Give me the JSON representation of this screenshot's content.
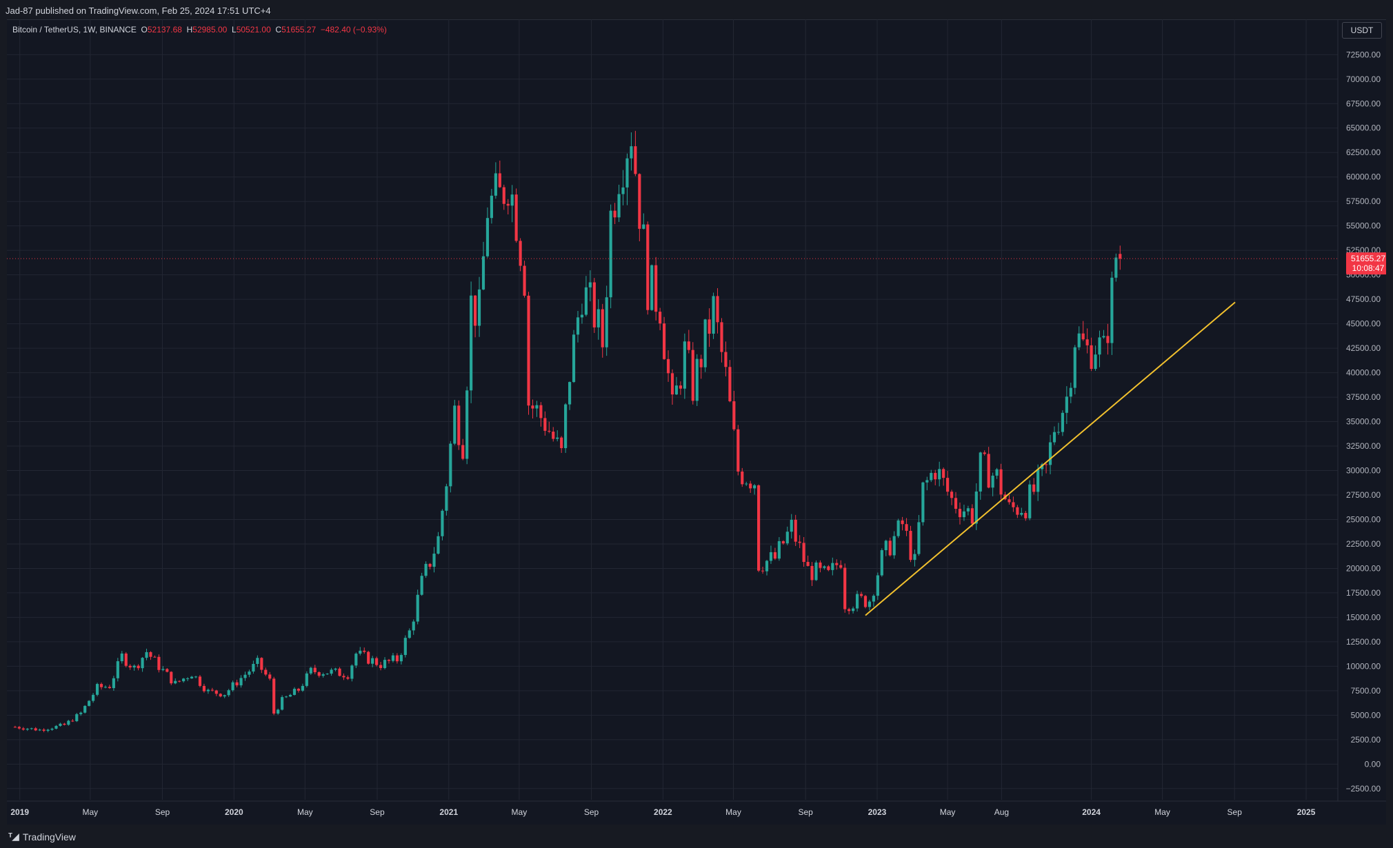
{
  "header": {
    "publisher_line": "Jad-87 published on TradingView.com, Feb 25, 2024 17:51 UTC+4"
  },
  "legend": {
    "symbol": "Bitcoin / TetherUS, 1W, BINANCE",
    "o_label": "O",
    "o_value": "52137.68",
    "h_label": "H",
    "h_value": "52985.00",
    "l_label": "L",
    "l_value": "50521.00",
    "c_label": "C",
    "c_value": "51655.27",
    "change": "−482.40 (−0.93%)"
  },
  "currency_button": "USDT",
  "footer": {
    "brand": "TradingView",
    "logo_icon": "tradingview-logo-icon"
  },
  "colors": {
    "up": "#26a69a",
    "down": "#f23645",
    "trendline": "#f2c12e",
    "grid": "#232733",
    "axis_text": "#b2b5be",
    "background": "#131722"
  },
  "chart_data": {
    "type": "candlestick",
    "interval": "1W",
    "ylim": [
      -3500,
      74000
    ],
    "xlim": [
      "2018-12-10",
      "2025-02-24"
    ],
    "yticks": [
      -2500,
      0,
      2500,
      5000,
      7500,
      10000,
      12500,
      15000,
      17500,
      20000,
      22500,
      25000,
      27500,
      30000,
      32500,
      35000,
      37500,
      40000,
      42500,
      45000,
      47500,
      50000,
      52500,
      55000,
      57500,
      60000,
      62500,
      65000,
      67500,
      70000,
      72500
    ],
    "ytick_labels": [
      "−2500.00",
      "0.00",
      "2500.00",
      "5000.00",
      "7500.00",
      "10000.00",
      "12500.00",
      "15000.00",
      "17500.00",
      "20000.00",
      "22500.00",
      "25000.00",
      "27500.00",
      "30000.00",
      "32500.00",
      "35000.00",
      "37500.00",
      "40000.00",
      "42500.00",
      "45000.00",
      "47500.00",
      "50000.00",
      "52500.00",
      "55000.00",
      "57500.00",
      "60000.00",
      "62500.00",
      "65000.00",
      "67500.00",
      "70000.00",
      "72500.00"
    ],
    "xticks": [
      {
        "date": "2019-01-01",
        "label": "2019",
        "bold": true
      },
      {
        "date": "2019-05-01",
        "label": "May",
        "bold": false
      },
      {
        "date": "2019-09-01",
        "label": "Sep",
        "bold": false
      },
      {
        "date": "2020-01-01",
        "label": "2020",
        "bold": true
      },
      {
        "date": "2020-05-01",
        "label": "May",
        "bold": false
      },
      {
        "date": "2020-09-01",
        "label": "Sep",
        "bold": false
      },
      {
        "date": "2021-01-01",
        "label": "2021",
        "bold": true
      },
      {
        "date": "2021-05-01",
        "label": "May",
        "bold": false
      },
      {
        "date": "2021-09-01",
        "label": "Sep",
        "bold": false
      },
      {
        "date": "2022-01-01",
        "label": "2022",
        "bold": true
      },
      {
        "date": "2022-05-01",
        "label": "May",
        "bold": false
      },
      {
        "date": "2022-09-01",
        "label": "Sep",
        "bold": false
      },
      {
        "date": "2023-01-01",
        "label": "2023",
        "bold": true
      },
      {
        "date": "2023-05-01",
        "label": "May",
        "bold": false
      },
      {
        "date": "2023-08-01",
        "label": "Aug",
        "bold": false
      },
      {
        "date": "2024-01-01",
        "label": "2024",
        "bold": true
      },
      {
        "date": "2024-05-01",
        "label": "May",
        "bold": false
      },
      {
        "date": "2024-09-01",
        "label": "Sep",
        "bold": false
      },
      {
        "date": "2025-01-01",
        "label": "2025",
        "bold": true
      }
    ],
    "last_price": 51655.27,
    "last_price_label": "51655.27",
    "countdown_label": "10:08:47",
    "price_anchors": [
      [
        "2018-12-24",
        3800
      ],
      [
        "2019-02-04",
        3500
      ],
      [
        "2019-03-18",
        4000
      ],
      [
        "2019-04-15",
        5200
      ],
      [
        "2019-05-13",
        7800
      ],
      [
        "2019-06-03",
        8000
      ],
      [
        "2019-06-24",
        11000
      ],
      [
        "2019-07-15",
        9800
      ],
      [
        "2019-08-05",
        11500
      ],
      [
        "2019-08-26",
        10000
      ],
      [
        "2019-09-23",
        8200
      ],
      [
        "2019-10-21",
        9300
      ],
      [
        "2019-11-18",
        7400
      ],
      [
        "2019-12-16",
        7200
      ],
      [
        "2020-01-13",
        8800
      ],
      [
        "2020-02-10",
        10300
      ],
      [
        "2020-03-02",
        8500
      ],
      [
        "2020-03-09",
        5200
      ],
      [
        "2020-03-23",
        6500
      ],
      [
        "2020-04-20",
        7600
      ],
      [
        "2020-05-11",
        9500
      ],
      [
        "2020-06-15",
        9400
      ],
      [
        "2020-07-13",
        9200
      ],
      [
        "2020-07-27",
        11300
      ],
      [
        "2020-09-07",
        10200
      ],
      [
        "2020-10-05",
        10700
      ],
      [
        "2020-10-26",
        13500
      ],
      [
        "2020-11-16",
        18500
      ],
      [
        "2020-12-14",
        23000
      ],
      [
        "2020-12-28",
        29000
      ],
      [
        "2021-01-11",
        36000
      ],
      [
        "2021-01-25",
        33000
      ],
      [
        "2021-02-08",
        47000
      ],
      [
        "2021-02-22",
        46000
      ],
      [
        "2021-03-08",
        57000
      ],
      [
        "2021-03-29",
        57800
      ],
      [
        "2021-04-12",
        60000
      ],
      [
        "2021-04-26",
        56000
      ],
      [
        "2021-05-10",
        50000
      ],
      [
        "2021-05-17",
        37000
      ],
      [
        "2021-06-14",
        35000
      ],
      [
        "2021-07-12",
        31500
      ],
      [
        "2021-07-26",
        40000
      ],
      [
        "2021-08-16",
        48500
      ],
      [
        "2021-09-06",
        46000
      ],
      [
        "2021-09-20",
        43000
      ],
      [
        "2021-10-04",
        56000
      ],
      [
        "2021-10-18",
        61000
      ],
      [
        "2021-11-08",
        65000
      ],
      [
        "2021-11-22",
        57000
      ],
      [
        "2021-12-06",
        49000
      ],
      [
        "2021-12-27",
        47000
      ],
      [
        "2022-01-17",
        36000
      ],
      [
        "2022-02-07",
        42000
      ],
      [
        "2022-02-21",
        38500
      ],
      [
        "2022-03-28",
        46500
      ],
      [
        "2022-04-18",
        39500
      ],
      [
        "2022-05-09",
        30000
      ],
      [
        "2022-06-06",
        29000
      ],
      [
        "2022-06-13",
        20500
      ],
      [
        "2022-07-11",
        21000
      ],
      [
        "2022-08-08",
        24200
      ],
      [
        "2022-09-05",
        19800
      ],
      [
        "2022-10-10",
        19200
      ],
      [
        "2022-10-31",
        21000
      ],
      [
        "2022-11-07",
        16500
      ],
      [
        "2022-12-19",
        16800
      ],
      [
        "2023-01-09",
        21000
      ],
      [
        "2023-02-13",
        24500
      ],
      [
        "2023-03-06",
        20500
      ],
      [
        "2023-03-20",
        28000
      ],
      [
        "2023-04-10",
        30300
      ],
      [
        "2023-05-08",
        27000
      ],
      [
        "2023-06-12",
        25500
      ],
      [
        "2023-06-26",
        30400
      ],
      [
        "2023-07-24",
        29300
      ],
      [
        "2023-08-14",
        26000
      ],
      [
        "2023-09-11",
        26500
      ],
      [
        "2023-10-16",
        30000
      ],
      [
        "2023-10-30",
        34500
      ],
      [
        "2023-11-20",
        37500
      ],
      [
        "2023-12-04",
        43800
      ],
      [
        "2023-12-25",
        42200
      ],
      [
        "2024-01-08",
        43000
      ],
      [
        "2024-01-22",
        42000
      ],
      [
        "2024-02-05",
        48000
      ],
      [
        "2024-02-12",
        52000
      ],
      [
        "2024-02-19",
        51655
      ]
    ],
    "trendline": {
      "start": [
        "2022-12-12",
        15200
      ],
      "end": [
        "2024-09-02",
        47200
      ]
    }
  }
}
